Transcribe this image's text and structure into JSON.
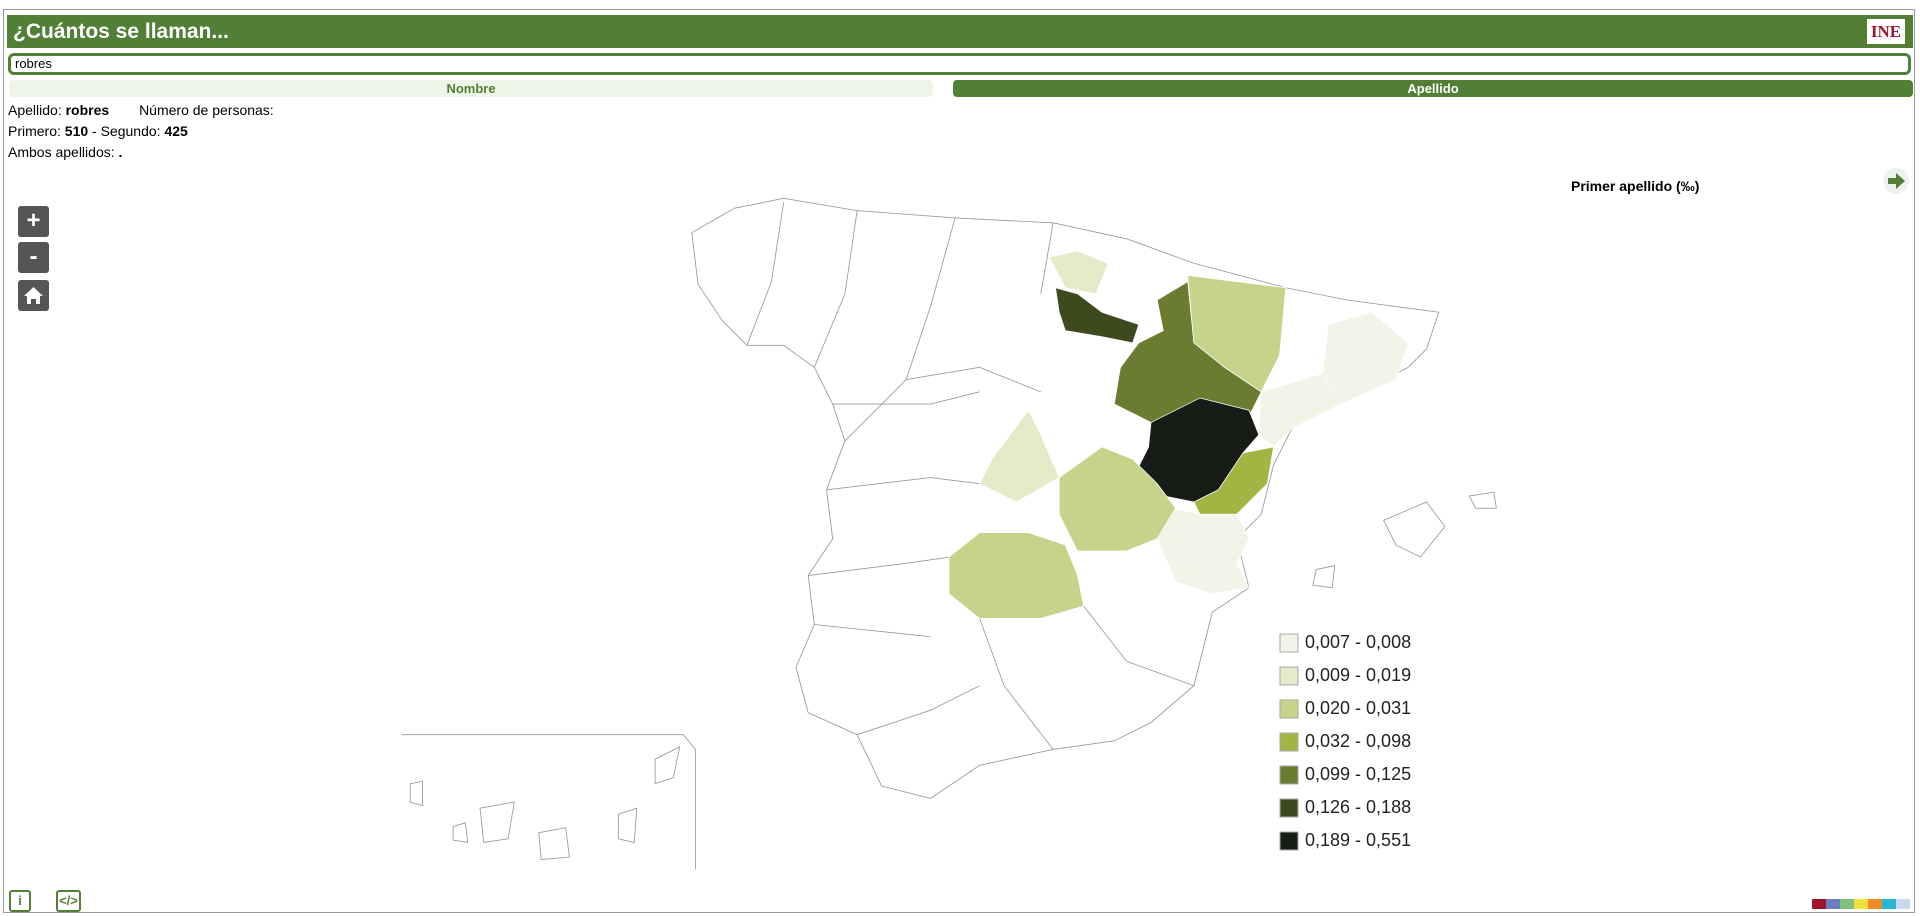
{
  "header": {
    "title": "¿Cuántos se llaman...",
    "logo": "INE"
  },
  "search": {
    "value": "robres"
  },
  "tabs": [
    "Nombre",
    "Apellido"
  ],
  "info": {
    "surname_label": "Apellido:",
    "surname": "robres",
    "people_label": "Número de personas:",
    "first_label": "Primero:",
    "first": 510,
    "second_label": "- Segundo:",
    "second": 425,
    "both_label": "Ambos apellidos:",
    "both": "."
  },
  "legend": {
    "title": "Primer apellido (‰)",
    "items": [
      {
        "label": "0,007 - 0,008",
        "color": "#f1f4e6"
      },
      {
        "label": "0,009 - 0,019",
        "color": "#e3ebc8"
      },
      {
        "label": "0,020 - 0,031",
        "color": "#c6d48b"
      },
      {
        "label": "0,032 - 0,098",
        "color": "#a3b442"
      },
      {
        "label": "0,099 - 0,125",
        "color": "#6b7b2f"
      },
      {
        "label": "0,126 - 0,188",
        "color": "#3e4a1e"
      },
      {
        "label": "0,189 - 0,551",
        "color": "#181c16"
      }
    ]
  }
}
